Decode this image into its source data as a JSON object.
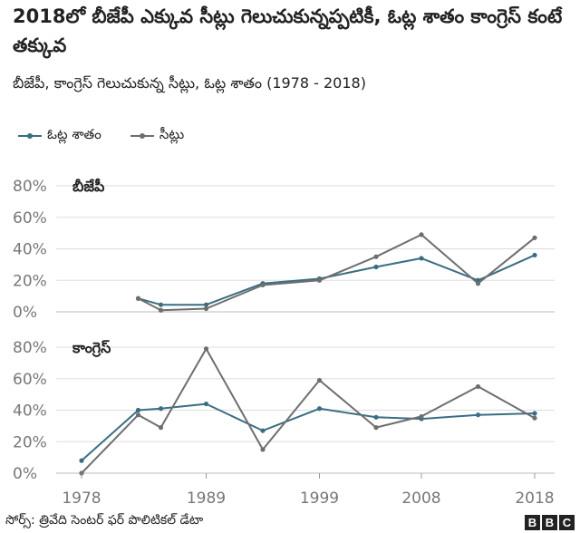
{
  "title": "2018లో బీజేపీ ఎక్కువ సీట్లు గెలుచుకున్నప్పటికీ, ఓట్ల శాతం కాంగ్రెస్ కంటే తక్కువ",
  "subtitle": "బీజేపీ, కాంగ్రెస్ గెలుచుకున్న సీట్లు, ఓట్ల శాతం (1978 - 2018)",
  "legend": [
    {
      "label": "ఓట్ల శాతం",
      "color": "#3a6e82"
    },
    {
      "label": "సీట్లు",
      "color": "#6e6e6e"
    }
  ],
  "footer": {
    "source": "సోర్స్: త్రివేది సెంటర్ ఫర్ పొలిటికల్ డేటా",
    "logo": "BBC"
  },
  "chart_data": {
    "type": "line",
    "x_ticks": [
      "1978",
      "1989",
      "1999",
      "2008",
      "2018"
    ],
    "y_ticks": [
      "0%",
      "20%",
      "40%",
      "60%",
      "80%"
    ],
    "ylim": [
      0,
      80
    ],
    "panels": [
      {
        "label": "బీజేపీ",
        "series": [
          {
            "name": "ఓట్ల శాతం",
            "color": "#3a6e82",
            "markers": true,
            "x": [
              1983,
              1985,
              1989,
              1994,
              1999,
              2004,
              2008,
              2013,
              2018
            ],
            "values": [
              8.5,
              4.5,
              4.5,
              18,
              21,
              28.5,
              34,
              20,
              36
            ]
          },
          {
            "name": "సీట్లు",
            "color": "#6e6e6e",
            "markers": true,
            "x": [
              1983,
              1985,
              1989,
              1994,
              1999,
              2004,
              2008,
              2013,
              2018
            ],
            "values": [
              8.5,
              1,
              2,
              17,
              20,
              35,
              49,
              18,
              47
            ]
          }
        ]
      },
      {
        "label": "కాంగ్రెస్",
        "series": [
          {
            "name": "ఓట్ల శాతం",
            "color": "#3a6e82",
            "markers": true,
            "x": [
              1978,
              1983,
              1985,
              1989,
              1994,
              1999,
              2004,
              2008,
              2013,
              2018
            ],
            "values": [
              8,
              40,
              41,
              44,
              27,
              41,
              35.5,
              34.5,
              37,
              38
            ]
          },
          {
            "name": "సీట్లు",
            "color": "#6e6e6e",
            "markers": true,
            "x": [
              1978,
              1983,
              1985,
              1989,
              1994,
              1999,
              2004,
              2008,
              2013,
              2018
            ],
            "values": [
              0,
              37,
              29,
              79,
              15,
              59,
              29,
              36,
              55,
              35
            ]
          }
        ]
      }
    ]
  }
}
